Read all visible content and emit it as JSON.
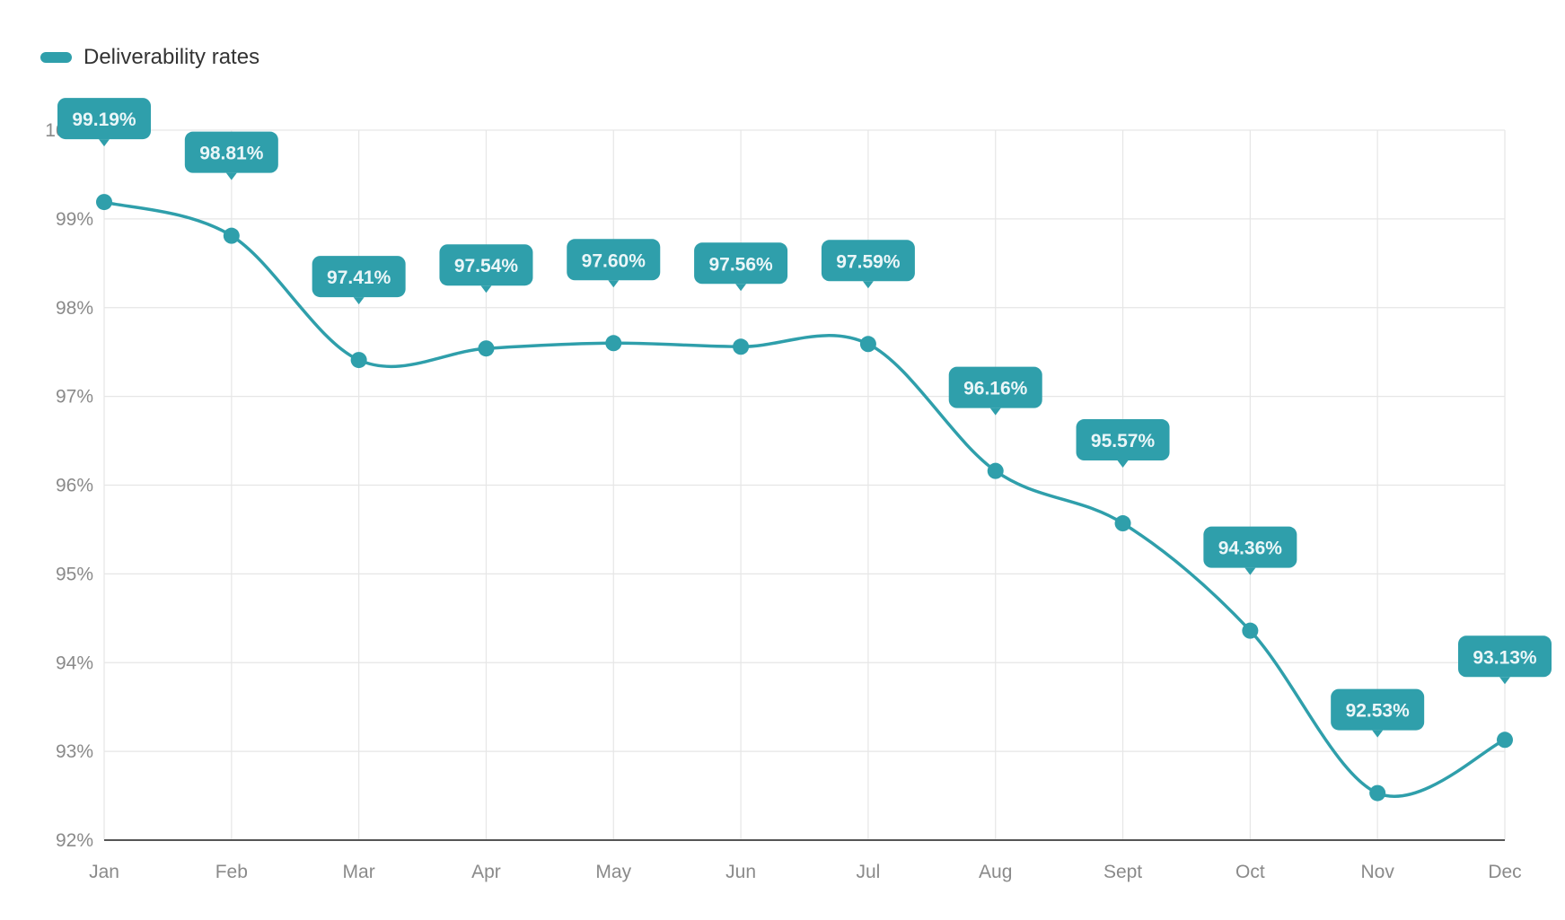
{
  "chart_data": {
    "type": "line",
    "title": "",
    "xlabel": "",
    "ylabel": "",
    "categories": [
      "Jan",
      "Feb",
      "Mar",
      "Apr",
      "May",
      "Jun",
      "Jul",
      "Aug",
      "Sept",
      "Oct",
      "Nov",
      "Dec"
    ],
    "series": [
      {
        "name": "Deliverability rates",
        "color": "#2f9fab",
        "values": [
          99.19,
          98.81,
          97.41,
          97.54,
          97.6,
          97.56,
          97.59,
          96.16,
          95.57,
          94.36,
          92.53,
          93.13
        ],
        "labels": [
          "99.19%",
          "98.81%",
          "97.41%",
          "97.54%",
          "97.60%",
          "97.56%",
          "97.59%",
          "96.16%",
          "95.57%",
          "94.36%",
          "92.53%",
          "93.13%"
        ]
      }
    ],
    "ylim": [
      92,
      100
    ],
    "yticks": [
      "92%",
      "93%",
      "94%",
      "95%",
      "96%",
      "97%",
      "98%",
      "99%",
      "100%"
    ],
    "grid": true,
    "legend": "top-left",
    "smooth": true
  }
}
